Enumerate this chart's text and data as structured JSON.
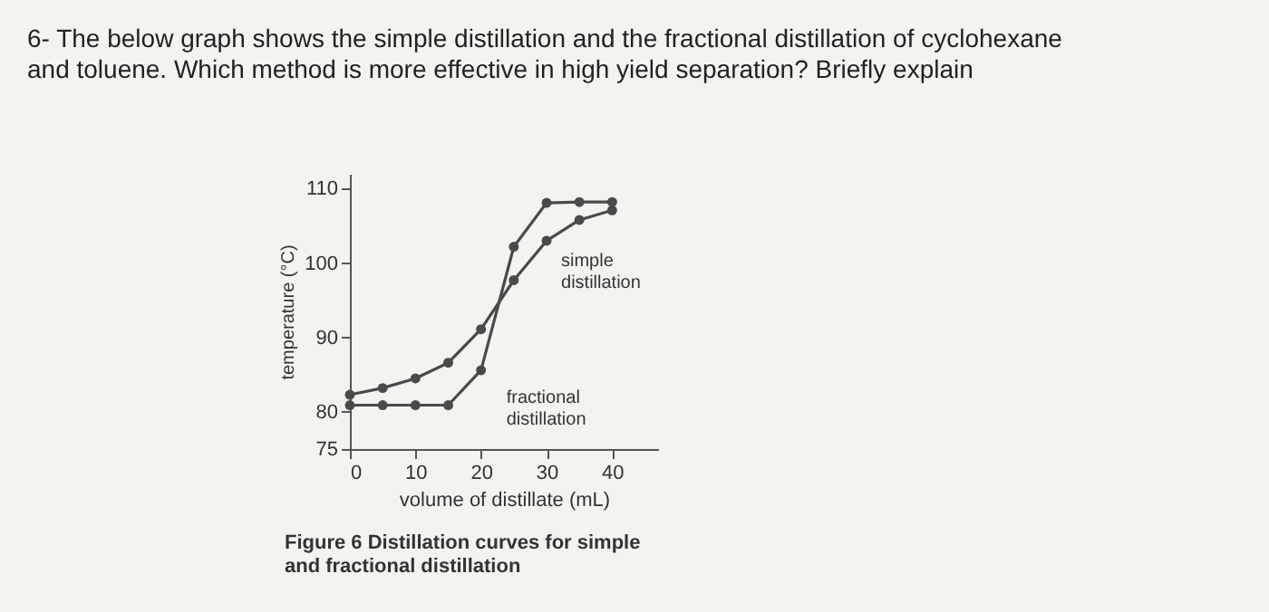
{
  "chart_data": {
    "type": "line",
    "title": "6- The below graph shows the simple distillation and the fractional distillation of cyclohexane\nand toluene. Which method is more effective in high yield separation? Briefly explain",
    "xlabel": "volume of distillate (mL)",
    "ylabel": "temperature (°C)",
    "x": [
      0,
      5,
      10,
      15,
      20,
      25,
      30,
      35,
      40
    ],
    "series": [
      {
        "name": "simple\ndistillation",
        "color": "#4a4a4a",
        "values": [
          82.3,
          83.2,
          84.5,
          86.6,
          91.1,
          97.7,
          103,
          105.8,
          107.1
        ]
      },
      {
        "name": "fractional\ndistillation",
        "color": "#4a4a4a",
        "values": [
          80.9,
          80.9,
          80.9,
          80.9,
          85.6,
          102.2,
          108.1,
          108.2,
          108.2
        ]
      }
    ],
    "xlim": [
      0,
      47
    ],
    "ylim": [
      75,
      112
    ],
    "xticks": [
      0,
      10,
      20,
      30,
      40
    ],
    "yticks": [
      75,
      80,
      90,
      100,
      110
    ],
    "marker": "circle",
    "line_style": "solid",
    "grid": false,
    "legend": false,
    "annotations": [
      "Figure 6  Distillation curves for simple\nand fractional distillation"
    ]
  }
}
